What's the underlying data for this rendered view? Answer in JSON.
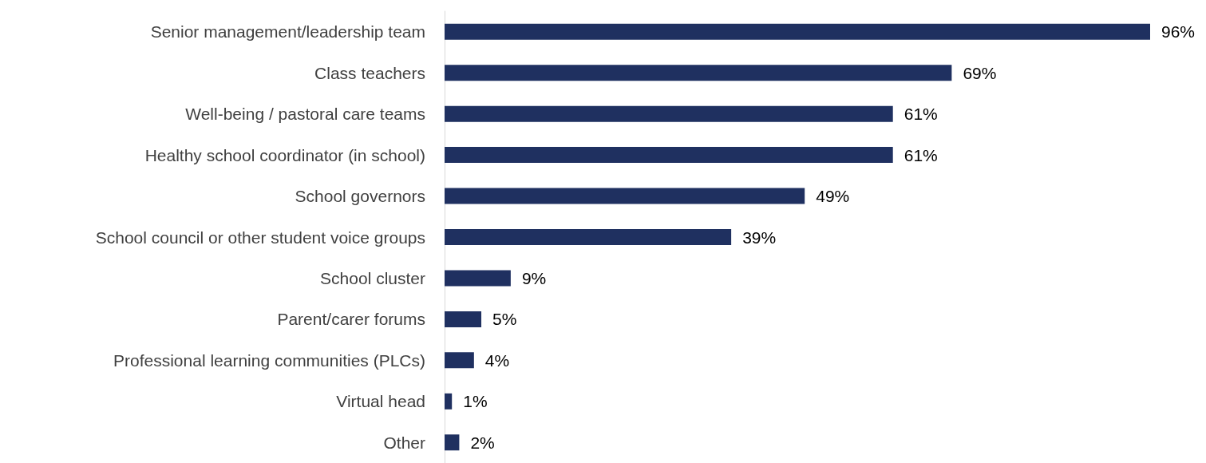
{
  "chart_data": {
    "type": "bar",
    "orientation": "horizontal",
    "categories": [
      "Senior management/leadership team",
      "Class teachers",
      "Well-being / pastoral care teams",
      "Healthy school coordinator (in school)",
      "School governors",
      "School council or other student voice groups",
      "School cluster",
      "Parent/carer forums",
      "Professional learning communities (PLCs)",
      "Virtual head",
      "Other"
    ],
    "values": [
      96,
      69,
      61,
      61,
      49,
      39,
      9,
      5,
      4,
      1,
      2
    ],
    "value_labels": [
      "96%",
      "69%",
      "61%",
      "61%",
      "49%",
      "39%",
      "9%",
      "5%",
      "4%",
      "1%",
      "2%"
    ],
    "color": "#1f3060"
  }
}
